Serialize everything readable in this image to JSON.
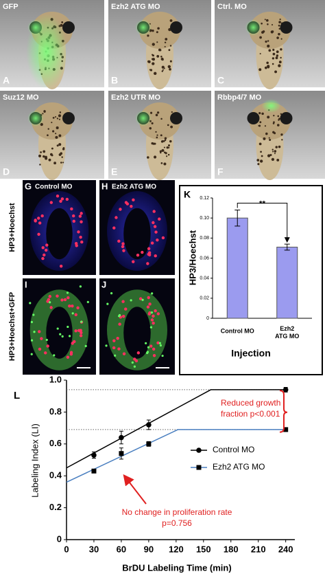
{
  "embryo_panels": [
    {
      "letter": "A",
      "label": "GFP"
    },
    {
      "letter": "B",
      "label": "Ezh2 ATG MO"
    },
    {
      "letter": "C",
      "label": "Ctrl. MO"
    },
    {
      "letter": "D",
      "label": "Suz12 MO"
    },
    {
      "letter": "E",
      "label": "Ezh2 UTR MO"
    },
    {
      "letter": "F",
      "label": "Rbbp4/7 MO"
    }
  ],
  "section_panels": [
    {
      "letter": "G",
      "label": "Control MO"
    },
    {
      "letter": "H",
      "label": "Ezh2 ATG MO"
    },
    {
      "letter": "I"
    },
    {
      "letter": "J"
    }
  ],
  "row_labels": [
    "HP3+Hoechst",
    "HP3+Hoechst+GFP"
  ],
  "chart_data": [
    {
      "type": "bar",
      "panel_label": "K",
      "y_label": "HP3/Hoechst",
      "x_label": "Injection",
      "categories": [
        "Control MO",
        "Ezh2 ATG MO"
      ],
      "values": [
        0.1,
        0.071
      ],
      "errors": [
        0.008,
        0.003
      ],
      "color": "#9b9bef",
      "annotation": "**",
      "ylim": [
        0,
        0.12
      ],
      "yticks": [
        0,
        0.02,
        0.04,
        0.06,
        0.08,
        {
          "value": 0.1,
          "label": "0.10"
        },
        0.12
      ]
    },
    {
      "type": "line",
      "panel_label": "L",
      "y_label": "Labeling Index (LI)",
      "x_label": "BrDU Labeling Time (min)",
      "series": [
        {
          "name": "Control MO",
          "color": "#000000",
          "marker": "circle",
          "x": [
            30,
            60,
            90,
            240
          ],
          "values": [
            0.53,
            0.64,
            0.72,
            0.94
          ],
          "errors": [
            0.02,
            0.04,
            0.03,
            0.015
          ],
          "fit_x": [
            0,
            158,
            240
          ],
          "fit_values": [
            0.45,
            0.94,
            0.94
          ]
        },
        {
          "name": "Ezh2 ATG MO",
          "color": "#4a7fc0",
          "marker": "square",
          "x": [
            30,
            60,
            90,
            240
          ],
          "values": [
            0.43,
            0.54,
            0.6,
            0.69
          ],
          "errors": [
            0.01,
            0.035,
            0.015,
            0.01
          ],
          "fit_x": [
            0,
            122,
            240
          ],
          "fit_values": [
            0.36,
            0.69,
            0.69
          ]
        }
      ],
      "reference_lines": [
        0.94,
        0.69
      ],
      "annotations": [
        {
          "lines": [
            "Reduced growth",
            "fraction p<0.001"
          ],
          "color": "#e02020"
        },
        {
          "lines": [
            "No change in proliferation rate",
            "p=0.756"
          ],
          "color": "#e02020"
        }
      ],
      "xlim": [
        0,
        250
      ],
      "xticks": [
        0,
        30,
        60,
        90,
        120,
        150,
        180,
        210,
        240
      ],
      "ylim": [
        0,
        1
      ],
      "yticks": [
        0,
        0.2,
        0.4,
        0.6,
        0.8,
        {
          "value": 1,
          "label": "1.0"
        }
      ]
    }
  ]
}
